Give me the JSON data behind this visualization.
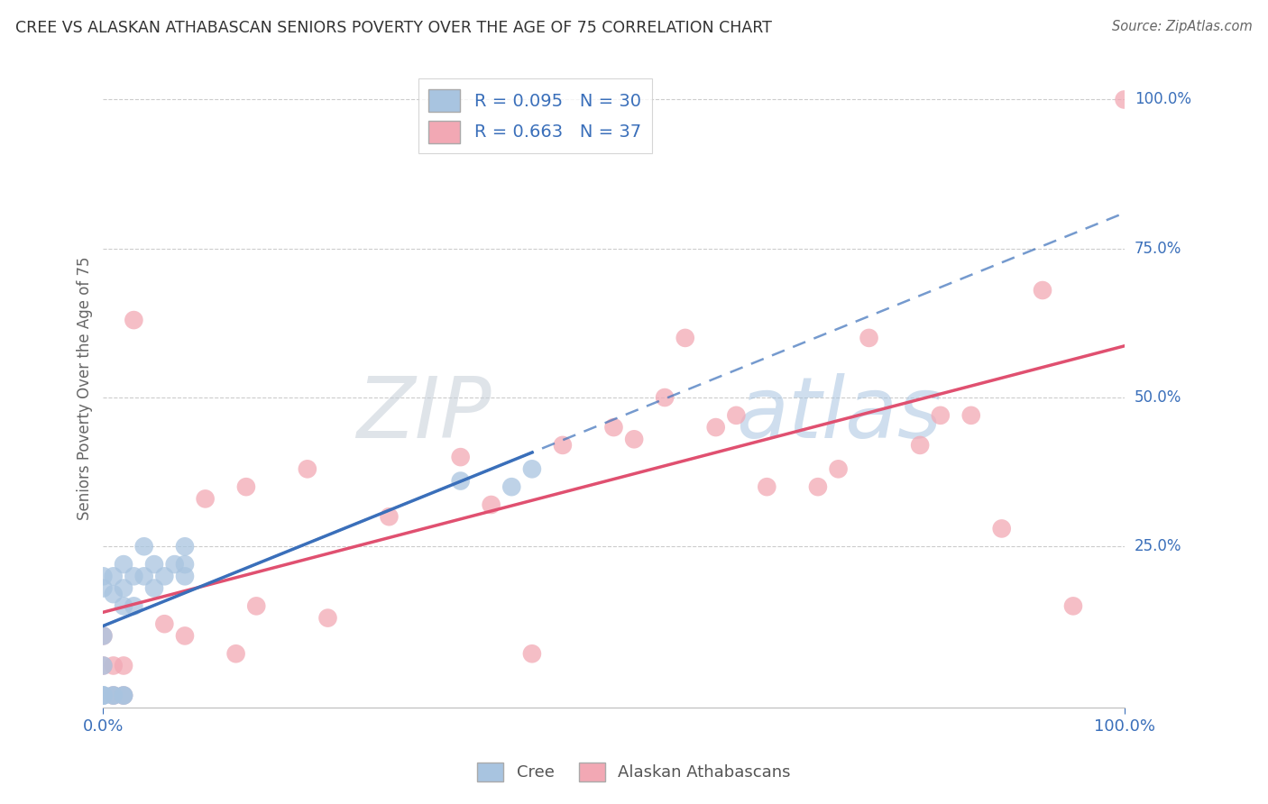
{
  "title": "CREE VS ALASKAN ATHABASCAN SENIORS POVERTY OVER THE AGE OF 75 CORRELATION CHART",
  "source": "Source: ZipAtlas.com",
  "ylabel": "Seniors Poverty Over the Age of 75",
  "watermark": "ZIPatlas",
  "legend_label1": "R = 0.095   N = 30",
  "legend_label2": "R = 0.663   N = 37",
  "cree_color": "#a8c4e0",
  "athabascan_color": "#f2a8b4",
  "cree_line_color": "#3a6fba",
  "athabascan_line_color": "#e05070",
  "cree_x": [
    0.0,
    0.0,
    0.0,
    0.0,
    0.0,
    0.0,
    0.0,
    0.01,
    0.01,
    0.01,
    0.01,
    0.02,
    0.02,
    0.02,
    0.02,
    0.02,
    0.03,
    0.03,
    0.04,
    0.04,
    0.05,
    0.05,
    0.06,
    0.07,
    0.08,
    0.08,
    0.08,
    0.35,
    0.4,
    0.42
  ],
  "cree_y": [
    0.0,
    0.0,
    0.0,
    0.05,
    0.1,
    0.18,
    0.2,
    0.0,
    0.0,
    0.17,
    0.2,
    0.0,
    0.0,
    0.15,
    0.18,
    0.22,
    0.15,
    0.2,
    0.2,
    0.25,
    0.18,
    0.22,
    0.2,
    0.22,
    0.2,
    0.22,
    0.25,
    0.36,
    0.35,
    0.38
  ],
  "athabascan_x": [
    0.0,
    0.0,
    0.01,
    0.01,
    0.02,
    0.02,
    0.03,
    0.06,
    0.08,
    0.1,
    0.13,
    0.14,
    0.15,
    0.2,
    0.22,
    0.28,
    0.35,
    0.38,
    0.42,
    0.45,
    0.5,
    0.52,
    0.55,
    0.57,
    0.6,
    0.62,
    0.65,
    0.7,
    0.72,
    0.75,
    0.8,
    0.82,
    0.85,
    0.88,
    0.92,
    0.95,
    1.0
  ],
  "athabascan_y": [
    0.05,
    0.1,
    0.0,
    0.05,
    0.0,
    0.05,
    0.63,
    0.12,
    0.1,
    0.33,
    0.07,
    0.35,
    0.15,
    0.38,
    0.13,
    0.3,
    0.4,
    0.32,
    0.07,
    0.42,
    0.45,
    0.43,
    0.5,
    0.6,
    0.45,
    0.47,
    0.35,
    0.35,
    0.38,
    0.6,
    0.42,
    0.47,
    0.47,
    0.28,
    0.68,
    0.15,
    1.0
  ],
  "xlim": [
    0.0,
    1.0
  ],
  "ylim": [
    -0.02,
    1.05
  ],
  "background_color": "#ffffff",
  "grid_color": "#cccccc",
  "title_color": "#555555",
  "tick_color": "#3a6fba"
}
